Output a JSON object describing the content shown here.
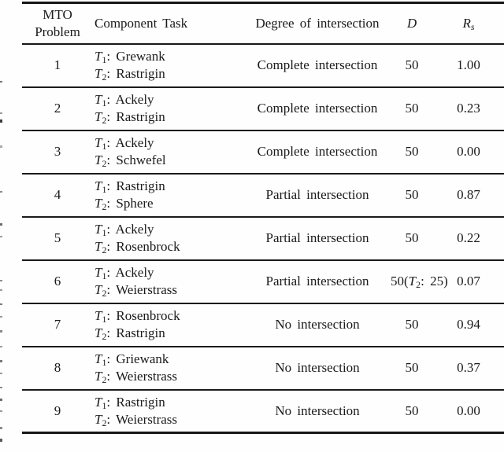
{
  "table": {
    "task_symbol": "T",
    "headers": {
      "col1_line1": "MTO",
      "col1_line2": "Problem",
      "col2": "Component Task",
      "col3": "Degree of intersection",
      "col4": "D",
      "col5_main": "R",
      "col5_sub": "s"
    },
    "rows": [
      {
        "problem": "1",
        "tasks": [
          {
            "sub": "1",
            "name": "Grewank"
          },
          {
            "sub": "2",
            "name": "Rastrigin"
          }
        ],
        "degree": "Complete intersection",
        "dim": "50",
        "rs": "1.00"
      },
      {
        "problem": "2",
        "tasks": [
          {
            "sub": "1",
            "name": "Ackely"
          },
          {
            "sub": "2",
            "name": "Rastrigin"
          }
        ],
        "degree": "Complete intersection",
        "dim": "50",
        "rs": "0.23"
      },
      {
        "problem": "3",
        "tasks": [
          {
            "sub": "1",
            "name": "Ackely"
          },
          {
            "sub": "2",
            "name": "Schwefel"
          }
        ],
        "degree": "Complete intersection",
        "dim": "50",
        "rs": "0.00"
      },
      {
        "problem": "4",
        "tasks": [
          {
            "sub": "1",
            "name": "Rastrigin"
          },
          {
            "sub": "2",
            "name": "Sphere"
          }
        ],
        "degree": "Partial intersection",
        "dim": "50",
        "rs": "0.87"
      },
      {
        "problem": "5",
        "tasks": [
          {
            "sub": "1",
            "name": "Ackely"
          },
          {
            "sub": "2",
            "name": "Rosenbrock"
          }
        ],
        "degree": "Partial intersection",
        "dim": "50",
        "rs": "0.22"
      },
      {
        "problem": "6",
        "tasks": [
          {
            "sub": "1",
            "name": "Ackely"
          },
          {
            "sub": "2",
            "name": "Weierstrass"
          }
        ],
        "degree": "Partial intersection",
        "dim": "50",
        "dim_note": {
          "sub": "2",
          "value": "25"
        },
        "rs": "0.07"
      },
      {
        "problem": "7",
        "tasks": [
          {
            "sub": "1",
            "name": "Rosenbrock"
          },
          {
            "sub": "2",
            "name": "Rastrigin"
          }
        ],
        "degree": "No intersection",
        "dim": "50",
        "rs": "0.94"
      },
      {
        "problem": "8",
        "tasks": [
          {
            "sub": "1",
            "name": "Griewank"
          },
          {
            "sub": "2",
            "name": "Weierstrass"
          }
        ],
        "degree": "No intersection",
        "dim": "50",
        "rs": "0.37"
      },
      {
        "problem": "9",
        "tasks": [
          {
            "sub": "1",
            "name": "Rastrigin"
          },
          {
            "sub": "2",
            "name": "Weierstrass"
          }
        ],
        "degree": "No intersection",
        "dim": "50",
        "rs": "0.00"
      }
    ]
  }
}
